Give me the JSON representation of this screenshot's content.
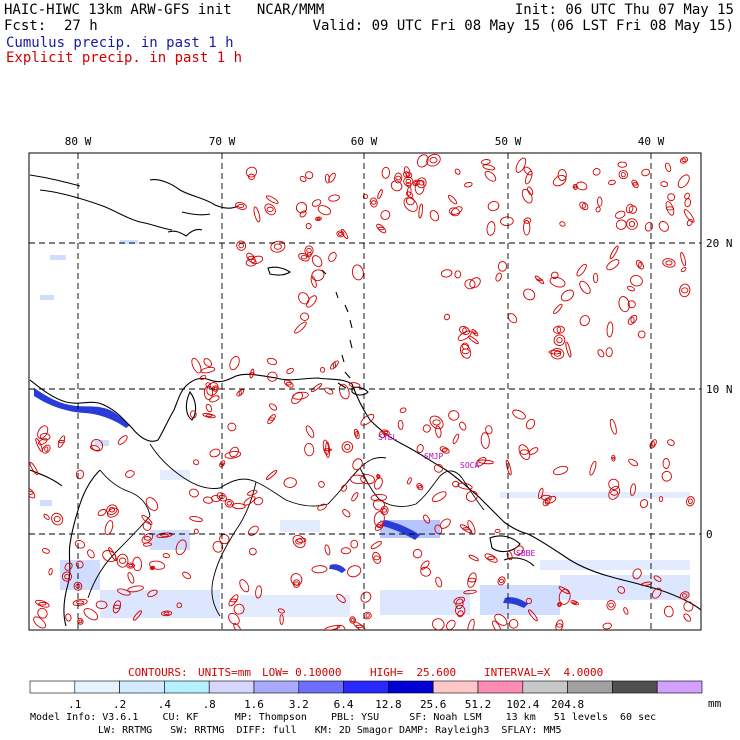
{
  "header": {
    "title_left": "HAIC-HIWC 13km ARW-GFS init   NCAR/MMM",
    "fcst_label": "Fcst:",
    "fcst_value": "27 h",
    "init": "Init: 06 UTC Thu 07 May 15",
    "valid": "Valid: 09 UTC Fri 08 May 15 (06 LST Fri 08 May 15)",
    "legend_cumulus": "Cumulus precip. in past 1 h",
    "legend_explicit": "Explicit precip. in past 1 h"
  },
  "colors": {
    "cumulus": "#1a1aa0",
    "explicit": "#d40000",
    "coast": "#000000"
  },
  "axes": {
    "lon_ticks": [
      "80 W",
      "70 W",
      "60 W",
      "50 W",
      "40 W"
    ],
    "lat_ticks": [
      "20 N",
      "10 N",
      "0"
    ]
  },
  "stations": [
    "SYEL",
    "SMJP",
    "SOCA",
    "SBBE"
  ],
  "contours_line": {
    "contours": "CONTOURS:",
    "units": "UNITS=mm",
    "low": "LOW= 0.10000",
    "high": "HIGH=  25.600",
    "interval": "INTERVAL=X  4.0000"
  },
  "colorbar": {
    "labels": [
      ".1",
      ".2",
      ".4",
      ".8",
      "1.6",
      "3.2",
      "6.4",
      "12.8",
      "25.6",
      "51.2",
      "102.4",
      "204.8"
    ],
    "unit": "mm",
    "colors": [
      "#ffffff",
      "#e6f4ff",
      "#d2ebff",
      "#b4f0ff",
      "#d6d6ff",
      "#aaaaff",
      "#6e6eff",
      "#2828ff",
      "#0000d6",
      "#ffc8c8",
      "#ff8cb4",
      "#c8c8c8",
      "#a0a0a0",
      "#505050",
      "#d2a0ff"
    ]
  },
  "model_info": {
    "line1": "Model Info: V3.6.1    CU: KF      MP: Thompson    PBL: YSU     SF: Noah LSM    13 km   51 levels  60 sec",
    "line2": "LW: RRTMG   SW: RRTMG  DIFF: full   KM: 2D Smagor DAMP: Rayleigh3  SFLAY: MM5"
  }
}
